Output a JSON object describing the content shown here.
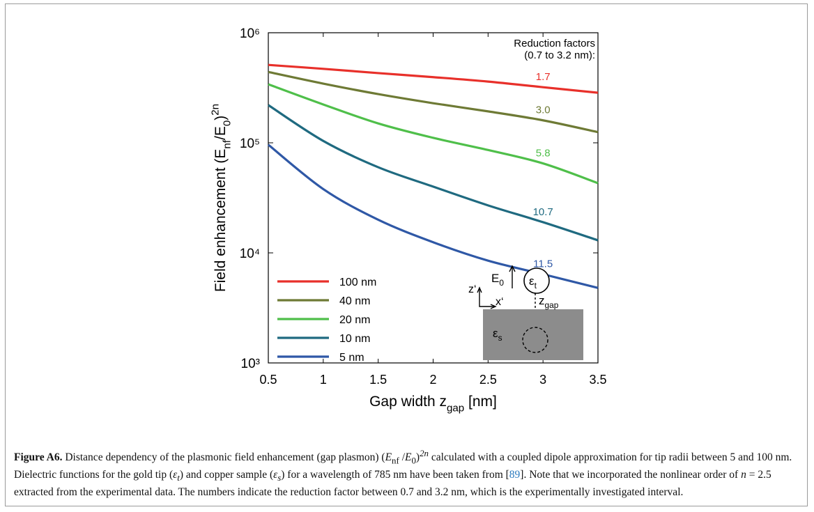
{
  "chart_data": {
    "type": "line",
    "log_y": true,
    "y_label": [
      {
        "text": "Field enhancement  (E"
      },
      {
        "text": "nf",
        "style": "sub"
      },
      {
        "text": "/E"
      },
      {
        "text": "0",
        "style": "sub"
      },
      {
        "text": ")"
      },
      {
        "text": "2n",
        "style": "sup"
      }
    ],
    "x_label": [
      {
        "text": "Gap width z"
      },
      {
        "text": "gap",
        "style": "sub"
      },
      {
        "text": " [nm]"
      }
    ],
    "xlim": [
      0.5,
      3.5
    ],
    "xticks": [
      0.5,
      1,
      1.5,
      2,
      2.5,
      3,
      3.5
    ],
    "ylim": [
      1000,
      1000000
    ],
    "yticks": [
      {
        "value": 1000,
        "label": "10³"
      },
      {
        "value": 10000,
        "label": "10⁴"
      },
      {
        "value": 100000,
        "label": "10⁵"
      },
      {
        "value": 1000000,
        "label": "10⁶"
      }
    ],
    "x": [
      0.5,
      1,
      1.5,
      2,
      2.5,
      3,
      3.5
    ],
    "legend": "lower left",
    "factor_header": [
      "Reduction factors",
      "(0.7 to 3.2 nm):"
    ],
    "series": [
      {
        "name": "100 nm",
        "color": "#e8302a",
        "values": [
          510000,
          470000,
          430000,
          395000,
          360000,
          320000,
          285000
        ],
        "reduction_factor": "1.7"
      },
      {
        "name": "40 nm",
        "color": "#6e7a35",
        "values": [
          440000,
          345000,
          277000,
          229000,
          193000,
          160000,
          125000
        ],
        "reduction_factor": "3.0"
      },
      {
        "name": "20 nm",
        "color": "#4fbf4a",
        "values": [
          340000,
          223000,
          150000,
          111000,
          86000,
          65000,
          43000
        ],
        "reduction_factor": "5.8"
      },
      {
        "name": "10 nm",
        "color": "#1f6a80",
        "values": [
          220000,
          104000,
          60000,
          40000,
          27000,
          19000,
          13000
        ],
        "reduction_factor": "10.7"
      },
      {
        "name": "5 nm",
        "color": "#2f58a6",
        "values": [
          96000,
          38000,
          20000,
          12500,
          8500,
          6400,
          4800
        ],
        "reduction_factor": "11.5"
      }
    ],
    "inset": {
      "field": "E",
      "field_sub": "0",
      "tip": "ε",
      "tip_sub": "t",
      "axis_z": "z‘",
      "axis_x": "x‘",
      "gap": "z",
      "gap_sub": "gap",
      "sample": "ε",
      "sample_sub": "s"
    }
  },
  "caption": [
    {
      "text": "Figure A6.",
      "style": "b"
    },
    {
      "text": " Distance dependency of the plasmonic field enhancement (gap plasmon) ("
    },
    {
      "text": "E",
      "style": "i"
    },
    {
      "text": "nf",
      "style": "sub"
    },
    {
      "text": " /"
    },
    {
      "text": "E",
      "style": "i"
    },
    {
      "text": "0",
      "style": "sub"
    },
    {
      "text": ")"
    },
    {
      "text": "2n",
      "style": "sup-i"
    },
    {
      "text": " calculated with a coupled dipole approximation for tip radii between 5 and 100 nm. Dielectric functions for the gold tip ("
    },
    {
      "text": "ε",
      "style": "i"
    },
    {
      "text": "t",
      "style": "sub-i"
    },
    {
      "text": ") and copper sample ("
    },
    {
      "text": "ε",
      "style": "i"
    },
    {
      "text": "s",
      "style": "sub-i"
    },
    {
      "text": ") for a wavelength of 785 nm have been taken from ["
    },
    {
      "text": "89",
      "style": "link"
    },
    {
      "text": "]. Note that we incorporated the nonlinear order of "
    },
    {
      "text": "n",
      "style": "i"
    },
    {
      "text": " = 2.5 extracted from the experimental data. The numbers indicate the reduction factor between 0.7 and 3.2 nm, which is the experimentally investigated interval."
    }
  ]
}
